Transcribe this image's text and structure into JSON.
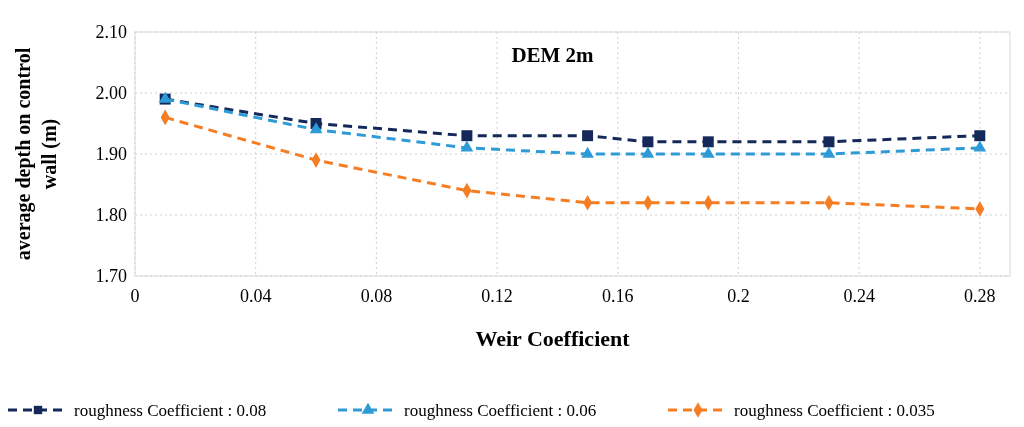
{
  "chart_data": {
    "type": "line",
    "title": "DEM 2m",
    "xlabel": "Weir Coefficient",
    "ylabel": "average  depth  on control wall  (m)",
    "x": [
      0.01,
      0.06,
      0.11,
      0.15,
      0.17,
      0.19,
      0.23,
      0.28
    ],
    "series": [
      {
        "name": "roughness Coefficient : 0.08",
        "color": "#14285a",
        "marker": "square",
        "values": [
          1.99,
          1.95,
          1.93,
          1.93,
          1.92,
          1.92,
          1.92,
          1.93
        ]
      },
      {
        "name": "roughness Coefficient : 0.06",
        "color": "#2e9bd6",
        "marker": "triangle",
        "values": [
          1.99,
          1.94,
          1.91,
          1.9,
          1.9,
          1.9,
          1.9,
          1.91
        ]
      },
      {
        "name": "roughness Coefficient : 0.035",
        "color": "#f57e24",
        "marker": "diamond",
        "values": [
          1.96,
          1.89,
          1.84,
          1.82,
          1.82,
          1.82,
          1.82,
          1.81
        ]
      }
    ],
    "xlim": [
      0,
      0.29
    ],
    "xticks": [
      0,
      0.04,
      0.08,
      0.12,
      0.16,
      {
        "value": 0.2,
        "label": "0.2"
      },
      0.24,
      0.28
    ],
    "ylim": [
      1.7,
      2.1
    ],
    "yticks": [
      {
        "value": 1.7,
        "label": "1.70"
      },
      {
        "value": 1.8,
        "label": "1.80"
      },
      {
        "value": 1.9,
        "label": "1.90"
      },
      {
        "value": 2.0,
        "label": "2.00"
      },
      {
        "value": 2.1,
        "label": "2.10"
      }
    ],
    "grid": true,
    "legend": "bottom",
    "line_style": "dashed"
  }
}
